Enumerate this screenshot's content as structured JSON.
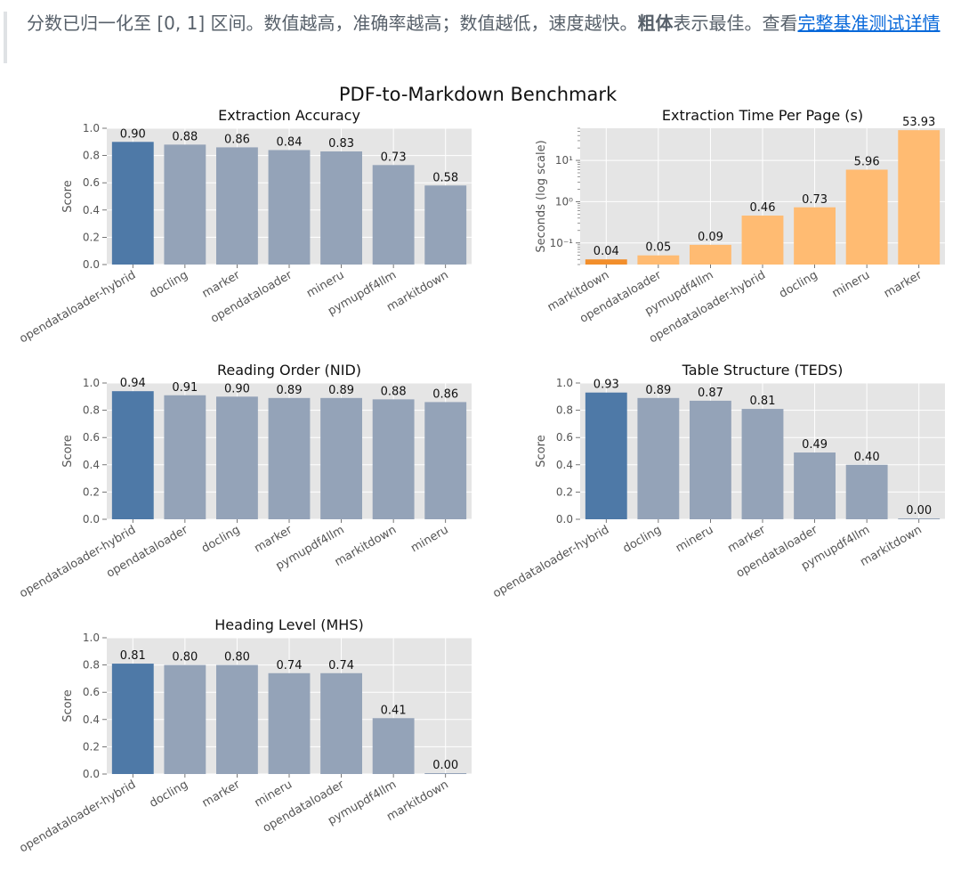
{
  "note": {
    "text_before": "分数已归一化至 [0, 1] 区间。数值越高，准确率越高；数值越低，速度越快。",
    "bold": "粗体",
    "text_mid": "表示最佳。查看",
    "link": "完整基准测试详情"
  },
  "figure_title": "PDF-to-Markdown Benchmark",
  "colors": {
    "best": "#4e79a7",
    "other": "#94a3b8",
    "fastest": "#f28e2b",
    "time": "#ffbb72",
    "bg": "#e5e5e5"
  },
  "chart_data": [
    {
      "type": "bar",
      "title": "Extraction Accuracy",
      "ylabel": "Score",
      "ylim": [
        0,
        1
      ],
      "yticks": [
        "0.0",
        "0.2",
        "0.4",
        "0.6",
        "0.8",
        "1.0"
      ],
      "categories": [
        "opendataloader-hybrid",
        "docling",
        "marker",
        "opendataloader",
        "mineru",
        "pymupdf4llm",
        "markitdown"
      ],
      "values": [
        0.9,
        0.88,
        0.86,
        0.84,
        0.83,
        0.73,
        0.58
      ],
      "labels": [
        "0.90",
        "0.88",
        "0.86",
        "0.84",
        "0.83",
        "0.73",
        "0.58"
      ]
    },
    {
      "type": "bar",
      "title": "Extraction Time Per Page (s)",
      "ylabel": "Seconds (log scale)",
      "yscale": "log",
      "ylim": [
        0.03,
        60
      ],
      "yticks": [
        "10⁻¹",
        "10⁰",
        "10¹"
      ],
      "categories": [
        "markitdown",
        "opendataloader",
        "pymupdf4llm",
        "opendataloader-hybrid",
        "docling",
        "mineru",
        "marker"
      ],
      "values": [
        0.04,
        0.05,
        0.09,
        0.46,
        0.73,
        5.96,
        53.93
      ],
      "labels": [
        "0.04",
        "0.05",
        "0.09",
        "0.46",
        "0.73",
        "5.96",
        "53.93"
      ]
    },
    {
      "type": "bar",
      "title": "Reading Order (NID)",
      "ylabel": "Score",
      "ylim": [
        0,
        1
      ],
      "yticks": [
        "0.0",
        "0.2",
        "0.4",
        "0.6",
        "0.8",
        "1.0"
      ],
      "categories": [
        "opendataloader-hybrid",
        "opendataloader",
        "docling",
        "marker",
        "pymupdf4llm",
        "markitdown",
        "mineru"
      ],
      "values": [
        0.94,
        0.91,
        0.9,
        0.89,
        0.89,
        0.88,
        0.86
      ],
      "labels": [
        "0.94",
        "0.91",
        "0.90",
        "0.89",
        "0.89",
        "0.88",
        "0.86"
      ]
    },
    {
      "type": "bar",
      "title": "Table Structure (TEDS)",
      "ylabel": "Score",
      "ylim": [
        0,
        1
      ],
      "yticks": [
        "0.0",
        "0.2",
        "0.4",
        "0.6",
        "0.8",
        "1.0"
      ],
      "categories": [
        "opendataloader-hybrid",
        "docling",
        "mineru",
        "marker",
        "opendataloader",
        "pymupdf4llm",
        "markitdown"
      ],
      "values": [
        0.93,
        0.89,
        0.87,
        0.81,
        0.49,
        0.4,
        0.0
      ],
      "labels": [
        "0.93",
        "0.89",
        "0.87",
        "0.81",
        "0.49",
        "0.40",
        "0.00"
      ]
    },
    {
      "type": "bar",
      "title": "Heading Level (MHS)",
      "ylabel": "Score",
      "ylim": [
        0,
        1
      ],
      "yticks": [
        "0.0",
        "0.2",
        "0.4",
        "0.6",
        "0.8",
        "1.0"
      ],
      "categories": [
        "opendataloader-hybrid",
        "docling",
        "marker",
        "mineru",
        "opendataloader",
        "pymupdf4llm",
        "markitdown"
      ],
      "values": [
        0.81,
        0.8,
        0.8,
        0.74,
        0.74,
        0.41,
        0.0
      ],
      "labels": [
        "0.81",
        "0.80",
        "0.80",
        "0.74",
        "0.74",
        "0.41",
        "0.00"
      ]
    }
  ]
}
